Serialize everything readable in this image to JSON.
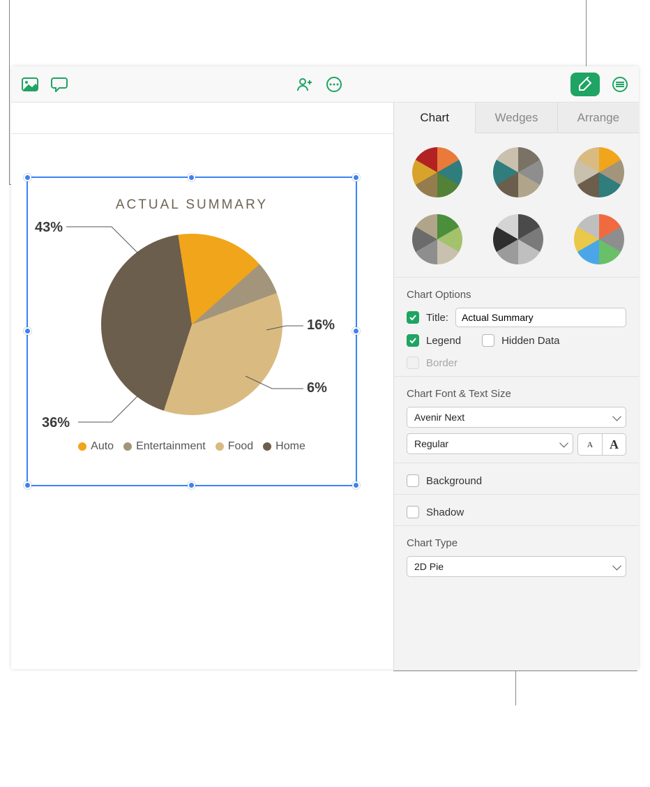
{
  "chart": {
    "type": "pie",
    "title": "ACTUAL SUMMARY",
    "slices": [
      {
        "label": "Home",
        "value": 43,
        "color": "#6b5e4c"
      },
      {
        "label": "Auto",
        "value": 16,
        "color": "#f1a51a"
      },
      {
        "label": "Entertainment",
        "value": 6,
        "color": "#a3957b"
      },
      {
        "label": "Food",
        "value": 36,
        "color": "#d9bb81"
      }
    ],
    "legend_order": [
      "Auto",
      "Entertainment",
      "Food",
      "Home"
    ],
    "title_color": "#6d6354",
    "label_color": "#3b3b3b",
    "selection_handle_color": "#3b82f6"
  },
  "style_presets": [
    [
      "#e97a3a",
      "#2f7d7d",
      "#538135",
      "#947c4e",
      "#d8a32a",
      "#b22222"
    ],
    [
      "#7a7264",
      "#8e8e8e",
      "#b0a58a",
      "#6b5e4c",
      "#2f7d7d",
      "#c9c0ae"
    ],
    [
      "#f1a51a",
      "#a3957b",
      "#2f7d7d",
      "#6b5e4c",
      "#c9c0ae",
      "#d9bb81"
    ],
    [
      "#4b8e3b",
      "#a2c26b",
      "#c9c0ae",
      "#8e8e8e",
      "#6b6b6b",
      "#b0a58a"
    ],
    [
      "#4a4a4a",
      "#7a7a7a",
      "#bfbfbf",
      "#9b9b9b",
      "#2f2f2f",
      "#d4d4d4"
    ],
    [
      "#f16a3f",
      "#8e8e8e",
      "#6abf69",
      "#4aa6e8",
      "#e9c84a",
      "#bfbfbf"
    ]
  ],
  "inspector": {
    "tabs": {
      "chart": "Chart",
      "wedges": "Wedges",
      "arrange": "Arrange"
    },
    "options_heading": "Chart Options",
    "title_label": "Title:",
    "title_value": "Actual Summary",
    "title_checked": true,
    "legend_label": "Legend",
    "legend_checked": true,
    "hidden_label": "Hidden Data",
    "hidden_checked": false,
    "border_label": "Border",
    "border_checked": false,
    "border_disabled": true,
    "font_heading": "Chart Font & Text Size",
    "font_family": "Avenir Next",
    "font_weight": "Regular",
    "small_a": "A",
    "big_a": "A",
    "background_label": "Background",
    "background_checked": false,
    "shadow_label": "Shadow",
    "shadow_checked": false,
    "type_heading": "Chart Type",
    "type_value": "2D Pie"
  },
  "accent_color": "#1fa463"
}
